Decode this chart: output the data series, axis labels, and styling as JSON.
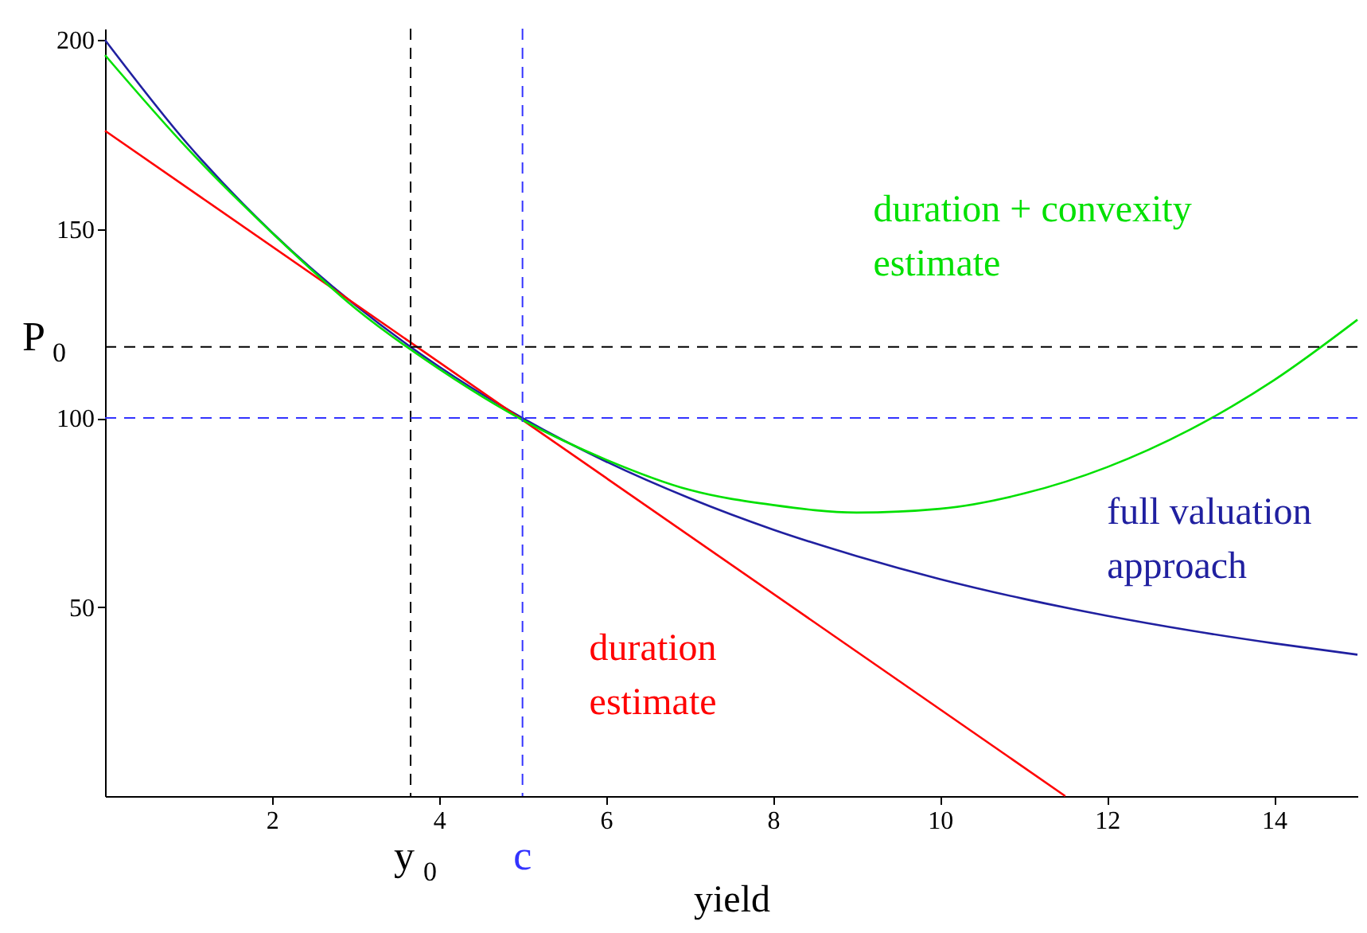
{
  "chart_data": {
    "type": "line",
    "xlabel": "yield",
    "xlim": [
      0,
      15
    ],
    "xticks": [
      2,
      4,
      6,
      8,
      10,
      12,
      14
    ],
    "ylim": [
      0,
      203
    ],
    "yticks": [
      50,
      100,
      150,
      200
    ],
    "grid": false,
    "legend": false,
    "marker": "none",
    "line_style": "solid",
    "series": [
      {
        "name": "full valuation approach",
        "color": "#2020a0",
        "x": [
          0,
          1,
          2,
          3,
          4,
          5,
          6,
          7,
          8,
          9,
          10,
          11,
          12,
          13,
          14,
          15
        ],
        "values": [
          200,
          172.2,
          149.1,
          129.8,
          113.6,
          100,
          88.5,
          78.8,
          70.5,
          63.5,
          57.4,
          52.2,
          47.7,
          43.8,
          40.4,
          37.4
        ]
      },
      {
        "name": "duration estimate",
        "color": "#ff0000",
        "x": [
          0,
          11.5
        ],
        "values": [
          176,
          0
        ]
      },
      {
        "name": "duration + convexity estimate",
        "color": "#00e000",
        "x": [
          0,
          1,
          2,
          3,
          4,
          5,
          6,
          7,
          8,
          9,
          10,
          11,
          12,
          13,
          14,
          15
        ],
        "values": [
          196,
          171,
          149,
          129,
          113,
          99.5,
          89,
          81,
          77,
          75,
          76,
          80,
          87,
          97,
          110,
          126
        ]
      }
    ],
    "ref_lines": [
      {
        "axis": "x",
        "value": 3.66,
        "label": "y$_{0}$",
        "color": "#000000",
        "line_style": "dashed"
      },
      {
        "axis": "x",
        "value": 5,
        "label": "c",
        "color": "#3333ff",
        "line_style": "dashed"
      },
      {
        "axis": "y",
        "value": 118.8,
        "label": "P$_{0}$",
        "color": "#000000",
        "line_style": "dashed"
      },
      {
        "axis": "y",
        "value": 100,
        "color": "#3333ff",
        "line_style": "dashed"
      }
    ]
  }
}
